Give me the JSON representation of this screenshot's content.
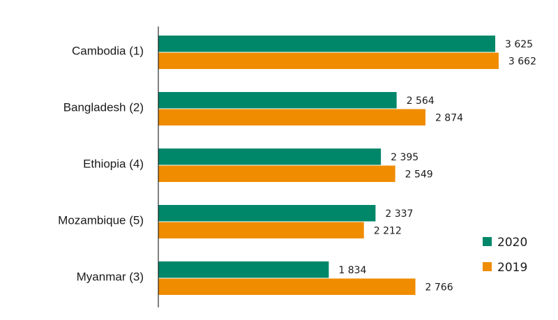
{
  "chart_data": {
    "type": "bar",
    "orientation": "horizontal",
    "categories": [
      "Cambodia (1)",
      "Bangladesh (2)",
      "Ethiopia (4)",
      "Mozambique (5)",
      "Myanmar (3)"
    ],
    "series": [
      {
        "name": "2020",
        "color": "#00876A",
        "values": [
          3625,
          2564,
          2395,
          2337,
          1834
        ],
        "labels": [
          "3 625",
          "2 564",
          "2 395",
          "2 337",
          "1 834"
        ]
      },
      {
        "name": "2019",
        "color": "#F08C00",
        "values": [
          3662,
          2874,
          2549,
          2212,
          2766
        ],
        "labels": [
          "3 662",
          "2 874",
          "2 549",
          "2 212",
          "2 766"
        ]
      }
    ],
    "title": "",
    "xlabel": "",
    "ylabel": "",
    "xlim": [
      0,
      3700
    ],
    "grid": false,
    "legend_position": "bottom-right"
  }
}
